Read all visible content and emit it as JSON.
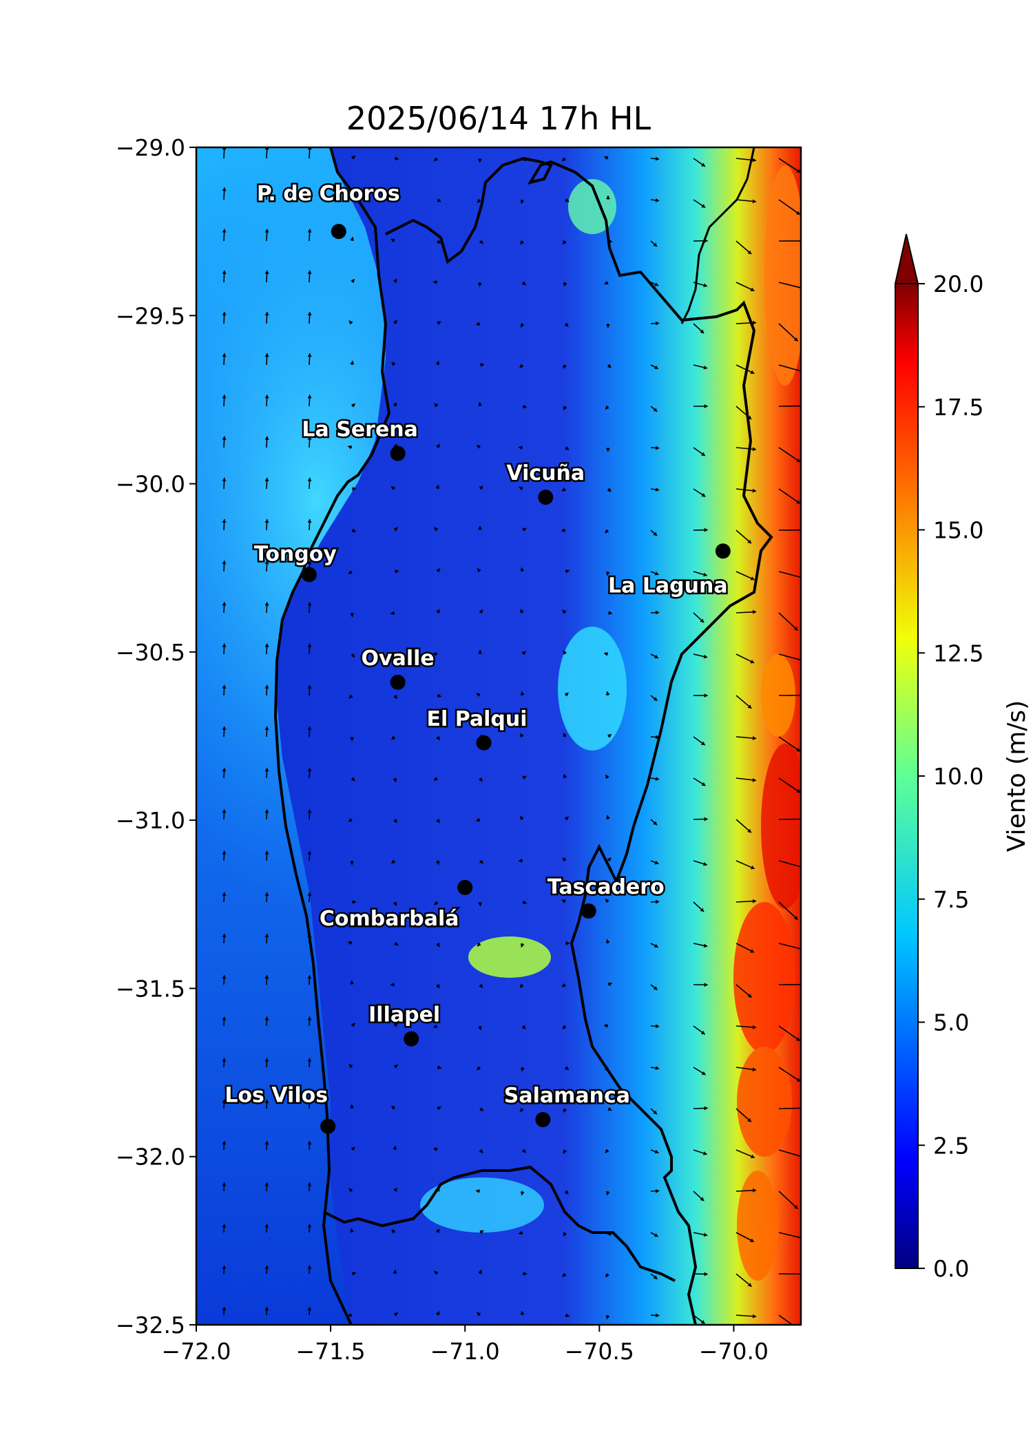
{
  "title": "2025/06/14 17h HL",
  "x_ticks": [
    "−72.0",
    "−71.5",
    "−71.0",
    "−70.5",
    "−70.0"
  ],
  "y_ticks": [
    "−29.0",
    "−29.5",
    "−30.0",
    "−30.5",
    "−31.0",
    "−31.5",
    "−32.0",
    "−32.5"
  ],
  "colorbar": {
    "label": "Viento (m/s)",
    "ticks": [
      "0.0",
      "2.5",
      "5.0",
      "7.5",
      "10.0",
      "12.5",
      "15.0",
      "17.5",
      "20.0"
    ],
    "range": [
      0,
      20
    ],
    "colormap": "jet",
    "extend": "max"
  },
  "cities": [
    {
      "name": "P. de Choros",
      "lon": -71.47,
      "lat": -29.25
    },
    {
      "name": "La Serena",
      "lon": -71.25,
      "lat": -29.91
    },
    {
      "name": "Vicuña",
      "lon": -70.7,
      "lat": -30.04
    },
    {
      "name": "Tongoy",
      "lon": -71.58,
      "lat": -30.27
    },
    {
      "name": "La Laguna",
      "lon": -70.04,
      "lat": -30.2
    },
    {
      "name": "Ovalle",
      "lon": -71.25,
      "lat": -30.59
    },
    {
      "name": "El Palqui",
      "lon": -70.93,
      "lat": -30.77
    },
    {
      "name": "Combarbalá",
      "lon": -71.0,
      "lat": -31.2
    },
    {
      "name": "Tascadero",
      "lon": -70.54,
      "lat": -31.27
    },
    {
      "name": "Illapel",
      "lon": -71.2,
      "lat": -31.65
    },
    {
      "name": "Los Vilos",
      "lon": -71.51,
      "lat": -31.91
    },
    {
      "name": "Salamanca",
      "lon": -70.71,
      "lat": -31.89
    }
  ],
  "map_extent": {
    "lon": [
      -72.0,
      -69.75
    ],
    "lat": [
      -32.5,
      -29.0
    ]
  },
  "colors": {
    "ocean": "#0090ff",
    "land_low": "#1030d0",
    "high_wind": "#ff4000"
  }
}
